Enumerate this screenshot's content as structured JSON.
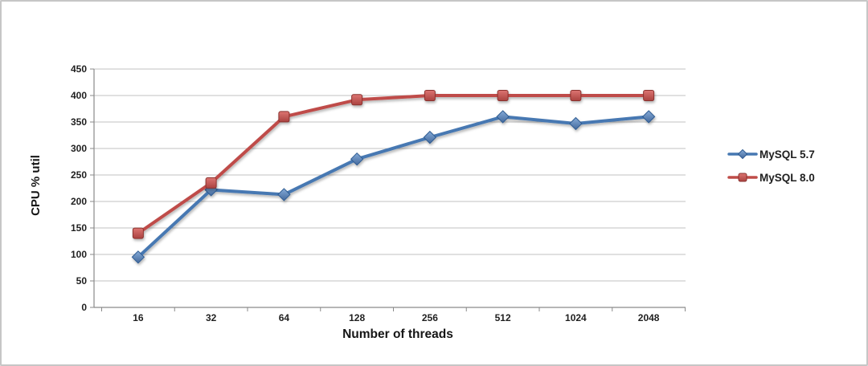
{
  "chart_data": {
    "type": "line",
    "title": "",
    "xlabel": "Number of threads",
    "ylabel": "CPU % util",
    "categories": [
      "16",
      "32",
      "64",
      "128",
      "256",
      "512",
      "1024",
      "2048"
    ],
    "series": [
      {
        "name": "MySQL 5.7",
        "marker": "diamond",
        "line_color": "#4678B2",
        "marker_top": "#85ABD8",
        "marker_bottom": "#44699C",
        "marker_stroke": "#2E5B92",
        "values": [
          95,
          222,
          213,
          280,
          321,
          360,
          347,
          360
        ]
      },
      {
        "name": "MySQL 8.0",
        "marker": "square",
        "line_color": "#BF4C48",
        "marker_top": "#DD7572",
        "marker_bottom": "#AA4240",
        "marker_stroke": "#8A322F",
        "values": [
          140,
          235,
          360,
          392,
          400,
          400,
          400,
          400
        ]
      }
    ],
    "ylim": [
      0,
      450
    ],
    "ytick_step": 50,
    "yticks": [
      "0",
      "50",
      "100",
      "150",
      "200",
      "250",
      "300",
      "350",
      "400",
      "450"
    ],
    "grid": "horizontal",
    "legend_position": "right",
    "gridline_color": "#c2c2c2",
    "axis_color": "#8a8a8a",
    "text_color": "#1f1f1f"
  }
}
